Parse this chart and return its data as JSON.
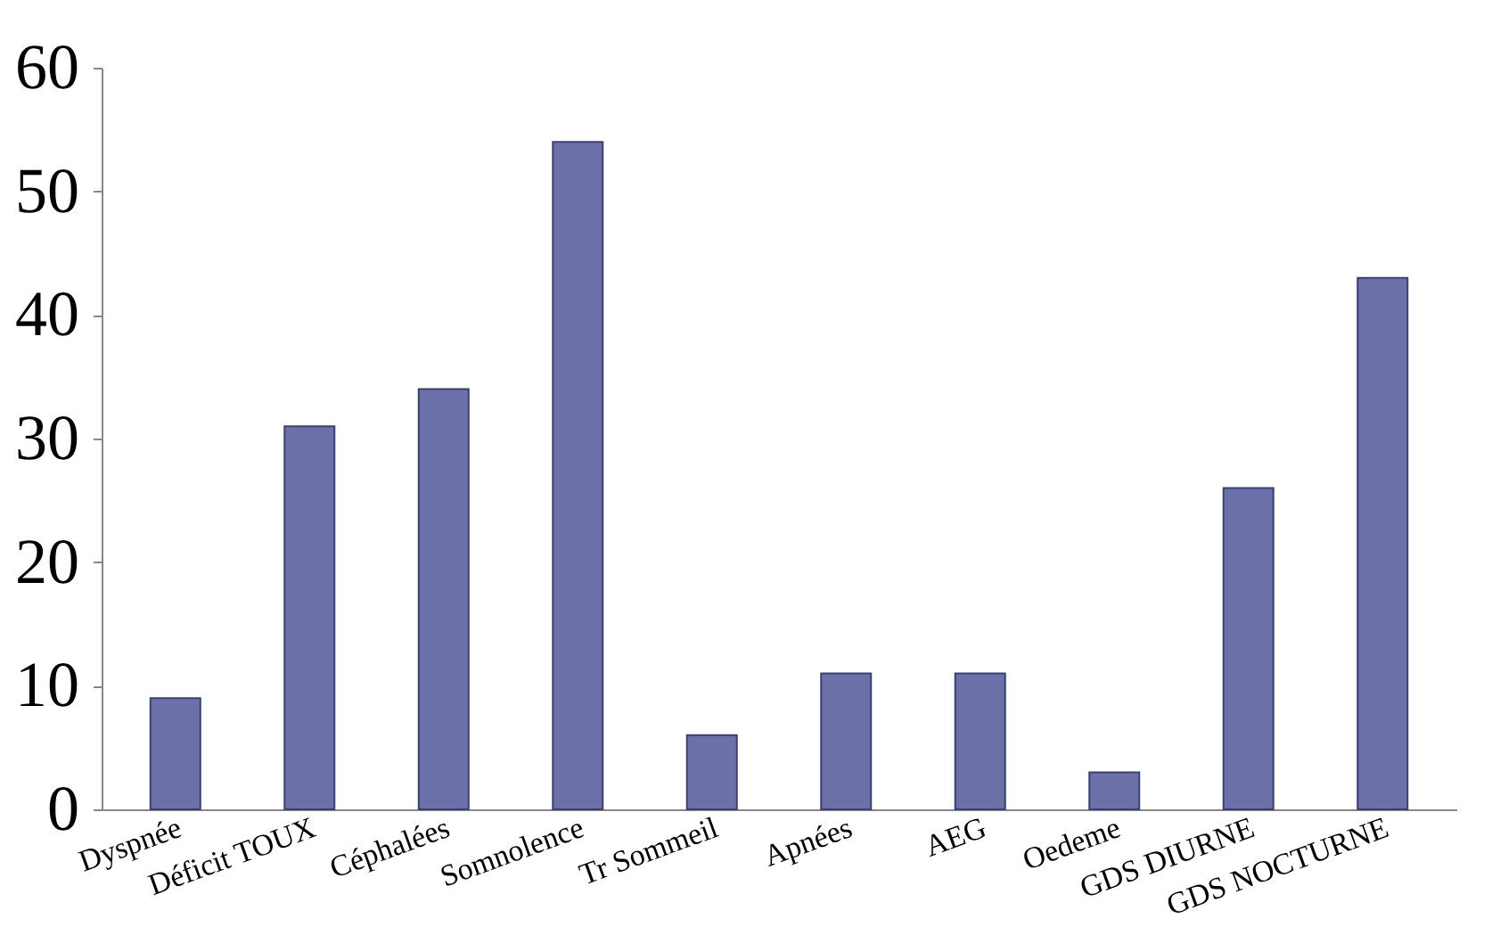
{
  "chart_data": {
    "type": "bar",
    "categories": [
      "Dyspnée",
      "Déficit TOUX",
      "Céphalées",
      "Somnolence",
      "Tr Sommeil",
      "Apnées",
      "AEG",
      "Oedeme",
      "GDS DIURNE",
      "GDS NOCTURNE"
    ],
    "values": [
      9,
      31,
      34,
      54,
      6,
      11,
      11,
      3,
      26,
      43
    ],
    "color": "#6b70a8",
    "ylim": [
      0,
      60
    ],
    "yticks": [
      0,
      10,
      20,
      30,
      40,
      50,
      60
    ],
    "grid": false
  }
}
